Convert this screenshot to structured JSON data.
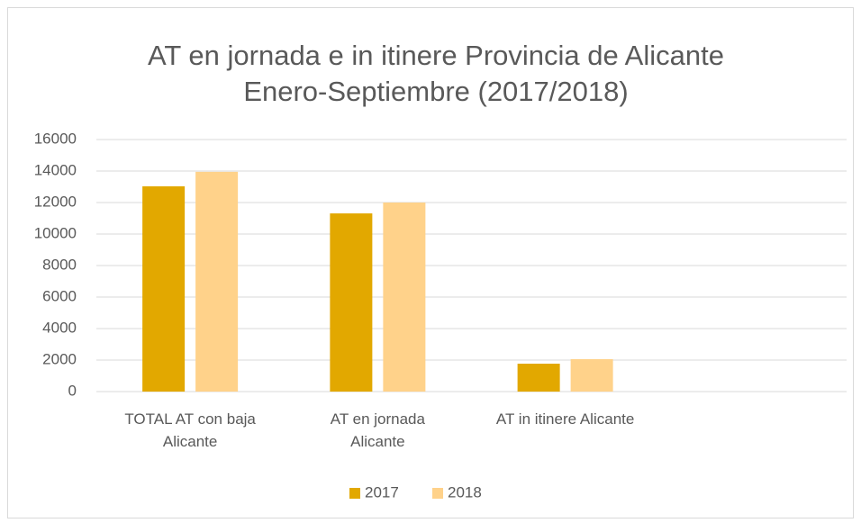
{
  "chart_data": {
    "type": "bar",
    "title": [
      "AT en jornada e in itinere Provincia de Alicante",
      "Enero-Septiembre (2017/2018)"
    ],
    "categories": [
      "TOTAL AT con baja Alicante",
      "AT en jornada Alicante",
      "AT in itinere Alicante",
      null
    ],
    "series": [
      {
        "name": "2017",
        "color": "#e2a800",
        "values": [
          13030,
          11310,
          1770,
          null
        ]
      },
      {
        "name": "2018",
        "color": "#ffd28a",
        "values": [
          13950,
          12000,
          2060,
          null
        ]
      }
    ],
    "ylim": [
      0,
      16000
    ],
    "yticks": [
      0,
      2000,
      4000,
      6000,
      8000,
      10000,
      12000,
      14000,
      16000
    ],
    "grid": true,
    "legend": "bottom"
  }
}
